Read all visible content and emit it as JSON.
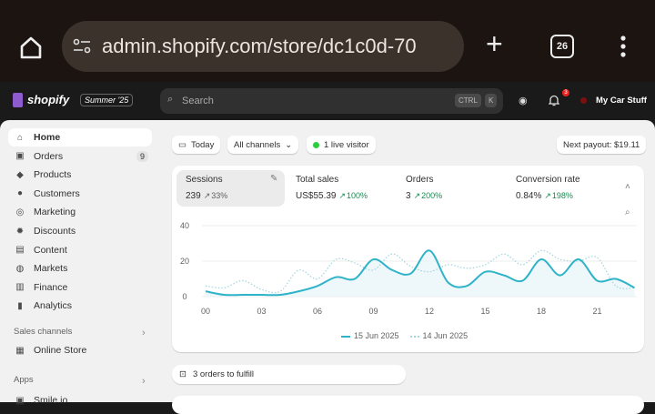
{
  "browser": {
    "url": "admin.shopify.com/store/dc1c0d-70",
    "tab_count": "26",
    "icons": [
      "home-icon",
      "site-settings-icon",
      "plus-icon",
      "tabs-icon",
      "menu-icon"
    ]
  },
  "topbar": {
    "brand": "shopify",
    "edition": "Summer '25",
    "search_placeholder": "Search",
    "kbd_ctrl": "CTRL",
    "kbd_k": "K",
    "notification_count": "3",
    "store_name": "My Car Stuff"
  },
  "sidebar": {
    "items": [
      {
        "label": "Home",
        "icon": "⌂"
      },
      {
        "label": "Orders",
        "icon": "▣",
        "badge": "9"
      },
      {
        "label": "Products",
        "icon": "◆"
      },
      {
        "label": "Customers",
        "icon": "●"
      },
      {
        "label": "Marketing",
        "icon": "◎"
      },
      {
        "label": "Discounts",
        "icon": "✹"
      },
      {
        "label": "Content",
        "icon": "▤"
      },
      {
        "label": "Markets",
        "icon": "◍"
      },
      {
        "label": "Finance",
        "icon": "▥"
      },
      {
        "label": "Analytics",
        "icon": "▮"
      }
    ],
    "sales_channels": "Sales channels",
    "online_store": "Online Store",
    "apps": "Apps",
    "app_item": "Smile.io"
  },
  "filters": {
    "date": "Today",
    "channels": "All channels",
    "live": "1 live visitor",
    "payout": "Next payout: $19.11"
  },
  "metrics": [
    {
      "label": "Sessions",
      "value": "239",
      "change": "33%"
    },
    {
      "label": "Total sales",
      "value": "US$55.39",
      "change": "100%"
    },
    {
      "label": "Orders",
      "value": "3",
      "change": "200%"
    },
    {
      "label": "Conversion rate",
      "value": "0.84%",
      "change": "198%"
    }
  ],
  "colors": {
    "current": "#2fb3c8",
    "previous": "#a9d6df",
    "up": "#1a8a52",
    "live": "#2ecc40"
  },
  "chart_data": {
    "type": "line",
    "x": [
      "00",
      "01",
      "02",
      "03",
      "04",
      "05",
      "06",
      "07",
      "08",
      "09",
      "10",
      "11",
      "12",
      "13",
      "14",
      "15",
      "16",
      "17",
      "18",
      "19",
      "20",
      "21",
      "22",
      "23"
    ],
    "x_tick_labels": [
      "00",
      "03",
      "06",
      "09",
      "12",
      "15",
      "18",
      "21"
    ],
    "y_tick_labels": [
      "0",
      "20",
      "40"
    ],
    "ylim": [
      0,
      40
    ],
    "grid": true,
    "legend": "bottom",
    "series": [
      {
        "name": "15 Jun 2025",
        "style": "solid",
        "values": [
          3,
          1,
          1,
          1,
          1,
          3,
          6,
          11,
          10,
          21,
          15,
          13,
          26,
          8,
          6,
          14,
          12,
          9,
          21,
          12,
          21,
          9,
          10,
          5
        ]
      },
      {
        "name": "14 Jun 2025",
        "style": "dotted",
        "values": [
          6,
          5,
          9,
          4,
          3,
          15,
          10,
          21,
          19,
          15,
          24,
          17,
          14,
          18,
          16,
          18,
          24,
          18,
          26,
          21,
          20,
          22,
          6,
          5
        ]
      }
    ]
  },
  "tasks": {
    "orders_to_fulfill": "3 orders to fulfill"
  }
}
